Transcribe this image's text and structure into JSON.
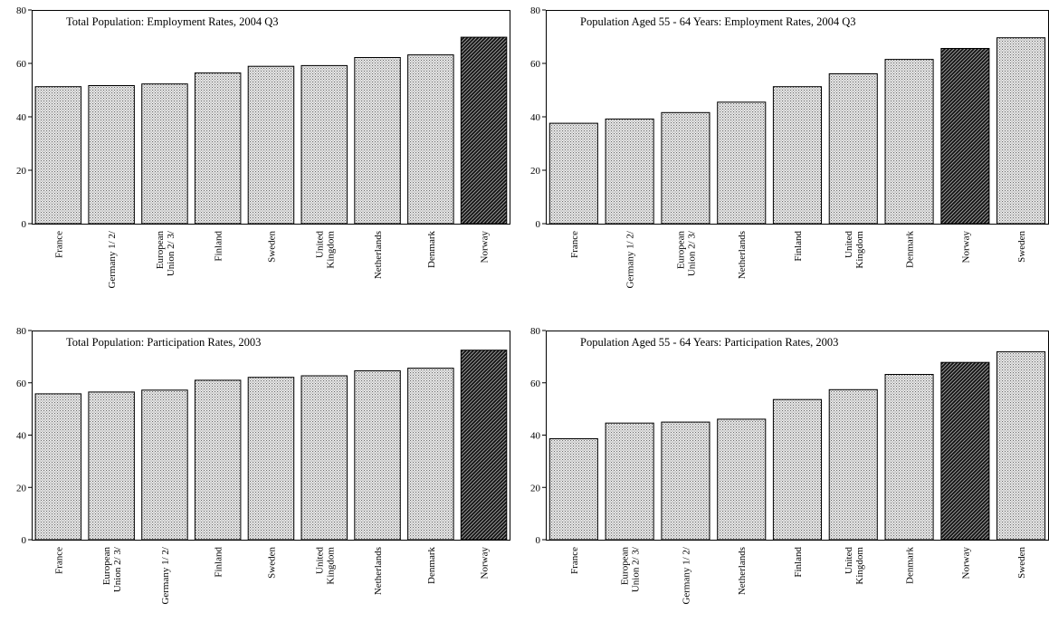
{
  "colors": {
    "bar_fill": "#e2e2e2",
    "highlight_fill": "#2a2a2a",
    "stroke": "#000000",
    "background": "#ffffff"
  },
  "chart_data": [
    {
      "type": "bar",
      "title": "Total Population: Employment Rates, 2004 Q3",
      "ylim": [
        0,
        80
      ],
      "yticks": [
        0,
        20,
        40,
        60,
        80
      ],
      "categories": [
        [
          "France"
        ],
        [
          "Germany 1/ 2/"
        ],
        [
          "European",
          "Union 2/ 3/"
        ],
        [
          "Finland"
        ],
        [
          "Sweden"
        ],
        [
          "United",
          "Kingdom"
        ],
        [
          "Netherlands"
        ],
        [
          "Denmark"
        ],
        [
          "Norway"
        ]
      ],
      "values": [
        51.3,
        51.7,
        52.3,
        56.4,
        58.9,
        59.2,
        62.2,
        63.2,
        69.8
      ],
      "highlight": "Norway"
    },
    {
      "type": "bar",
      "title": "Population Aged 55 - 64 Years: Employment Rates, 2004 Q3",
      "ylim": [
        0,
        80
      ],
      "yticks": [
        0,
        20,
        40,
        60,
        80
      ],
      "categories": [
        [
          "France"
        ],
        [
          "Germany 1/ 2/"
        ],
        [
          "European",
          "Union 2/ 3/"
        ],
        [
          "Netherlands"
        ],
        [
          "Finland"
        ],
        [
          "United",
          "Kingdom"
        ],
        [
          "Denmark"
        ],
        [
          "Norway"
        ],
        [
          "Sweden"
        ]
      ],
      "values": [
        37.6,
        39.2,
        41.6,
        45.5,
        51.3,
        56.1,
        61.5,
        65.6,
        69.6
      ],
      "highlight": "Norway"
    },
    {
      "type": "bar",
      "title": "Total Population: Participation Rates, 2003",
      "ylim": [
        0,
        80
      ],
      "yticks": [
        0,
        20,
        40,
        60,
        80
      ],
      "categories": [
        [
          "France"
        ],
        [
          "European",
          "Union 2/ 3/"
        ],
        [
          "Germany 1/ 2/"
        ],
        [
          "Finland"
        ],
        [
          "Sweden"
        ],
        [
          "United",
          "Kingdom"
        ],
        [
          "Netherlands"
        ],
        [
          "Denmark"
        ],
        [
          "Norway"
        ]
      ],
      "values": [
        55.8,
        56.5,
        57.2,
        61.0,
        62.1,
        62.7,
        64.6,
        65.6,
        72.5
      ],
      "highlight": "Norway"
    },
    {
      "type": "bar",
      "title": "Population Aged 55 - 64 Years: Participation Rates, 2003",
      "ylim": [
        0,
        80
      ],
      "yticks": [
        0,
        20,
        40,
        60,
        80
      ],
      "categories": [
        [
          "France"
        ],
        [
          "European",
          "Union 2/ 3/"
        ],
        [
          "Germany 1/ 2/"
        ],
        [
          "Netherlands"
        ],
        [
          "Finland"
        ],
        [
          "United",
          "Kingdom"
        ],
        [
          "Denmark"
        ],
        [
          "Norway"
        ],
        [
          "Sweden"
        ]
      ],
      "values": [
        38.6,
        44.6,
        45.0,
        46.1,
        53.6,
        57.4,
        63.2,
        67.8,
        71.9
      ],
      "highlight": "Norway"
    }
  ]
}
